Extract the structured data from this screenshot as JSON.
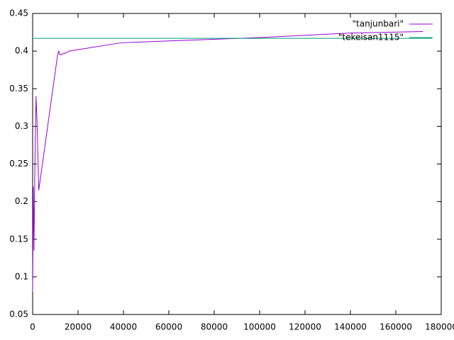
{
  "chart_data": {
    "type": "line",
    "xlim": [
      0,
      180000
    ],
    "xticks": [
      0,
      20000,
      40000,
      60000,
      80000,
      100000,
      120000,
      140000,
      160000,
      180000
    ],
    "ylim": [
      0.05,
      0.45
    ],
    "yticks": [
      0.05,
      0.1,
      0.15,
      0.2,
      0.25,
      0.3,
      0.35,
      0.4,
      0.45
    ],
    "legend": "top-right",
    "series": [
      {
        "name": "\"tanjunbari\"",
        "color": "#9400d3",
        "x": [
          0,
          300,
          600,
          1000,
          1500,
          2000,
          2700,
          11000,
          11500,
          12000,
          15000,
          16000,
          39000,
          47000,
          100000,
          140000,
          172000
        ],
        "values": [
          0.08,
          0.22,
          0.135,
          0.25,
          0.34,
          0.3,
          0.215,
          0.395,
          0.4,
          0.395,
          0.398,
          0.4,
          0.411,
          0.412,
          0.418,
          0.424,
          0.426
        ]
      },
      {
        "name": "\"tekeisan1115\"",
        "color": "#009e73",
        "x": [
          0,
          176000
        ],
        "values": [
          0.417,
          0.417
        ]
      }
    ]
  }
}
